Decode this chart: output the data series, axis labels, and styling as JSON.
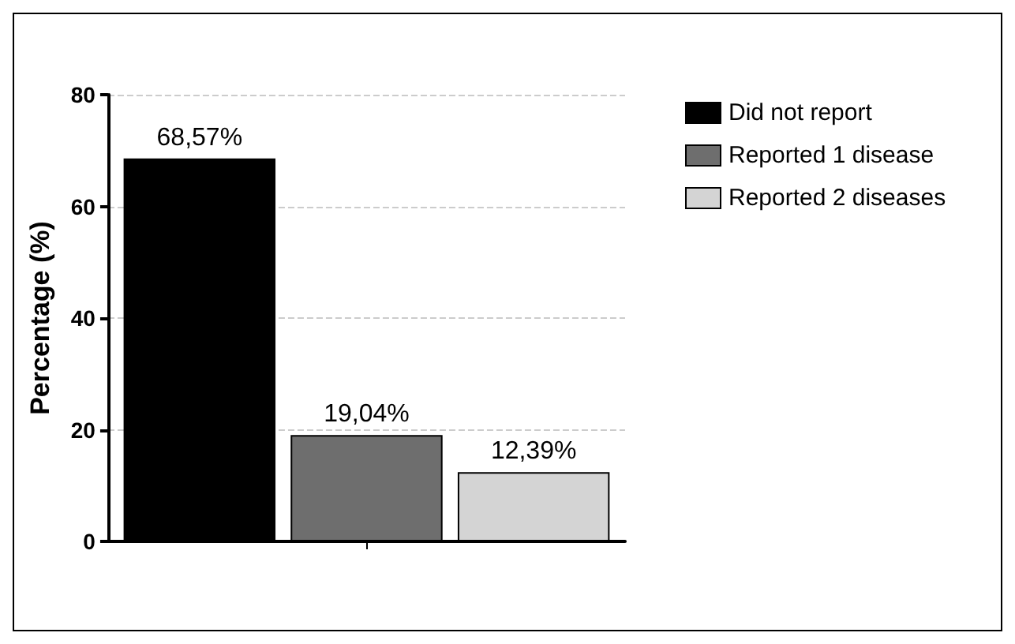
{
  "chart_data": {
    "type": "bar",
    "ylabel": "Percentage (%)",
    "categories": [
      null
    ],
    "series": [
      {
        "name": "Did not report",
        "color": "#000000",
        "values": [
          68.57
        ],
        "value_labels": [
          "68,57%"
        ]
      },
      {
        "name": "Reported 1 disease",
        "color": "#6e6e6e",
        "values": [
          19.04
        ],
        "value_labels": [
          "19,04%"
        ]
      },
      {
        "name": "Reported 2 diseases",
        "color": "#d4d4d4",
        "values": [
          12.39
        ],
        "value_labels": [
          "12,39%"
        ]
      }
    ],
    "ylim": [
      0,
      80
    ],
    "yticks": [
      0,
      20,
      40,
      60,
      80
    ],
    "grid": "y",
    "legend": "top right"
  }
}
